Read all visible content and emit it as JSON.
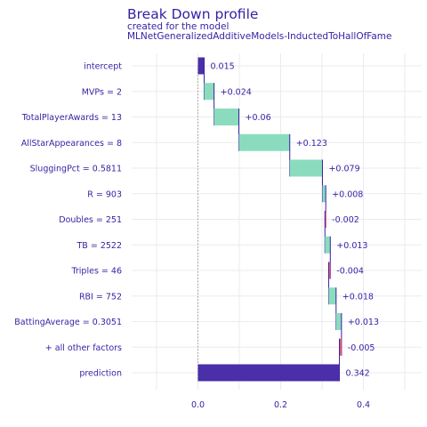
{
  "chart_data": {
    "type": "bar",
    "subtype": "waterfall",
    "title": "Break Down profile",
    "subtitle_line1": "created for the  model",
    "subtitle_line2": "MLNetGeneralizedAdditiveModels-InductedToHallOfFame",
    "xlim": [
      -0.14,
      0.52
    ],
    "xticks": [
      "0.0",
      "0.2",
      "0.4"
    ],
    "xtick_values": [
      0.0,
      0.2,
      0.4
    ],
    "grid": true,
    "colors": {
      "positive": "#8bdcbe",
      "negative": "#f05a71",
      "prediction": "#4a2fa8",
      "text": "#371ea3",
      "connector": "#371ea3"
    },
    "rows": [
      {
        "label": "intercept",
        "start": 0.0,
        "end": 0.015,
        "value_label": "0.015",
        "kind": "intercept"
      },
      {
        "label": "MVPs = 2",
        "start": 0.015,
        "end": 0.039,
        "value_label": "+0.024",
        "kind": "positive"
      },
      {
        "label": "TotalPlayerAwards = 13",
        "start": 0.039,
        "end": 0.099,
        "value_label": "+0.06",
        "kind": "positive"
      },
      {
        "label": "AllStarAppearances = 8",
        "start": 0.099,
        "end": 0.222,
        "value_label": "+0.123",
        "kind": "positive"
      },
      {
        "label": "SluggingPct = 0.5811",
        "start": 0.222,
        "end": 0.301,
        "value_label": "+0.079",
        "kind": "positive"
      },
      {
        "label": "R = 903",
        "start": 0.301,
        "end": 0.309,
        "value_label": "+0.008",
        "kind": "positive"
      },
      {
        "label": "Doubles = 251",
        "start": 0.309,
        "end": 0.307,
        "value_label": "-0.002",
        "kind": "negative"
      },
      {
        "label": "TB = 2522",
        "start": 0.307,
        "end": 0.32,
        "value_label": "+0.013",
        "kind": "positive"
      },
      {
        "label": "Triples = 46",
        "start": 0.32,
        "end": 0.316,
        "value_label": "-0.004",
        "kind": "negative"
      },
      {
        "label": "RBI = 752",
        "start": 0.316,
        "end": 0.334,
        "value_label": "+0.018",
        "kind": "positive"
      },
      {
        "label": "BattingAverage = 0.3051",
        "start": 0.334,
        "end": 0.347,
        "value_label": "+0.013",
        "kind": "positive"
      },
      {
        "label": "+ all other factors",
        "start": 0.347,
        "end": 0.342,
        "value_label": "-0.005",
        "kind": "negative"
      },
      {
        "label": "prediction",
        "start": 0.0,
        "end": 0.342,
        "value_label": "0.342",
        "kind": "prediction"
      }
    ]
  }
}
